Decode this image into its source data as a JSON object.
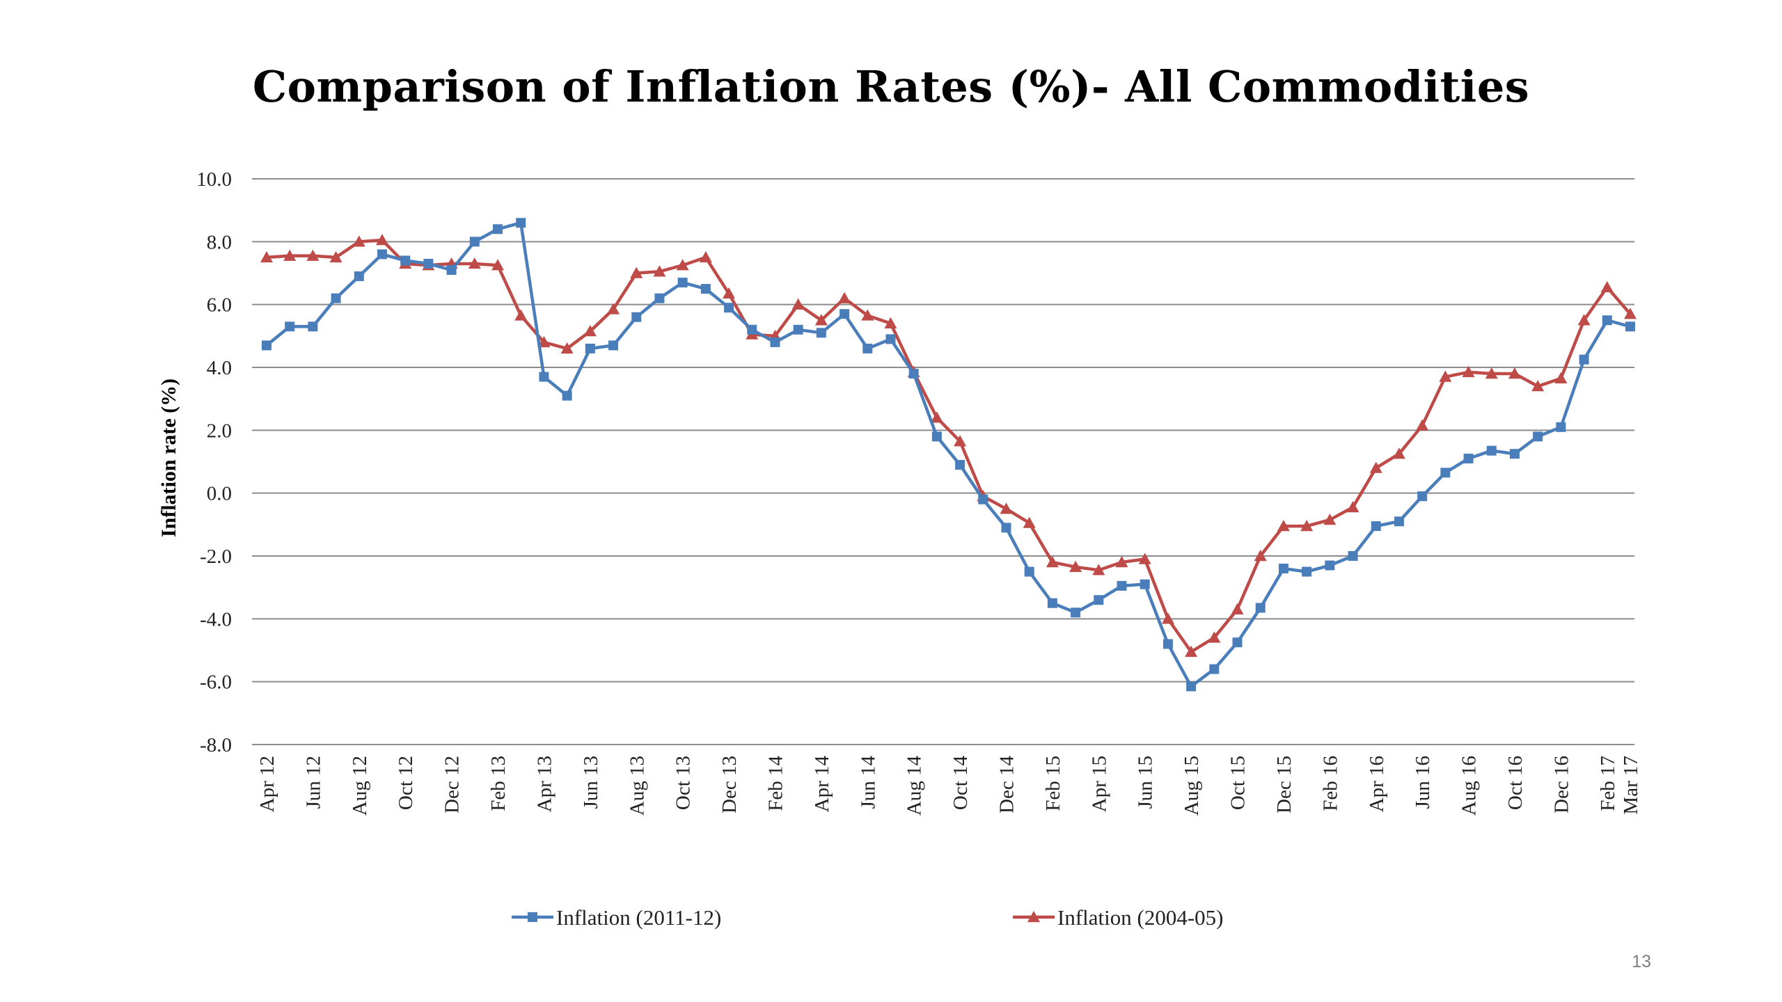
{
  "page_number": "13",
  "chart_data": {
    "type": "line",
    "title": "Comparison of  Inflation Rates (%)- All Commodities",
    "xlabel": "",
    "ylabel": "Inflation rate (%)",
    "ylim": [
      -8.0,
      10.0
    ],
    "ytick_values": [
      10.0,
      8.0,
      6.0,
      4.0,
      2.0,
      0.0,
      -2.0,
      -4.0,
      -6.0,
      -8.0
    ],
    "ytick_labels": [
      "10.0",
      "8.0",
      "6.0",
      "4.0",
      "2.0",
      "0.0",
      "-2.0",
      "-4.0",
      "-6.0",
      "-8.0"
    ],
    "grid": true,
    "legend_position": "bottom",
    "x": [
      "Apr 12",
      "May 12",
      "Jun 12",
      "Jul 12",
      "Aug 12",
      "Sep 12",
      "Oct 12",
      "Nov 12",
      "Dec 12",
      "Jan 13",
      "Feb 13",
      "Mar 13",
      "Apr 13",
      "May 13",
      "Jun 13",
      "Jul 13",
      "Aug 13",
      "Sep 13",
      "Oct 13",
      "Nov 13",
      "Dec 13",
      "Jan 14",
      "Feb 14",
      "Mar 14",
      "Apr 14",
      "May 14",
      "Jun 14",
      "Jul 14",
      "Aug 14",
      "Sep 14",
      "Oct 14",
      "Nov 14",
      "Dec 14",
      "Jan 15",
      "Feb 15",
      "Mar 15",
      "Apr 15",
      "May 15",
      "Jun 15",
      "Jul 15",
      "Aug 15",
      "Sep 15",
      "Oct 15",
      "Nov 15",
      "Dec 15",
      "Jan 16",
      "Feb 16",
      "Mar 16",
      "Apr 16",
      "May 16",
      "Jun 16",
      "Jul 16",
      "Aug 16",
      "Sep 16",
      "Oct 16",
      "Nov 16",
      "Dec 16",
      "Jan 17",
      "Feb 17",
      "Mar 17"
    ],
    "xtick_labels": [
      "Apr 12",
      "",
      "Jun 12",
      "",
      "Aug 12",
      "",
      "Oct 12",
      "",
      "Dec 12",
      "",
      "Feb 13",
      "",
      "Apr 13",
      "",
      "Jun 13",
      "",
      "Aug 13",
      "",
      "Oct 13",
      "",
      "Dec 13",
      "",
      "Feb 14",
      "",
      "Apr 14",
      "",
      "Jun 14",
      "",
      "Aug 14",
      "",
      "Oct 14",
      "",
      "Dec 14",
      "",
      "Feb 15",
      "",
      "Apr 15",
      "",
      "Jun 15",
      "",
      "Aug 15",
      "",
      "Oct 15",
      "",
      "Dec 15",
      "",
      "Feb 16",
      "",
      "Apr 16",
      "",
      "Jun 16",
      "",
      "Aug 16",
      "",
      "Oct 16",
      "",
      "Dec 16",
      "",
      "Feb 17",
      "Mar 17"
    ],
    "series": [
      {
        "name": "Inflation (2011-12)",
        "color": "#4a7ebb",
        "marker": "square",
        "values": [
          4.7,
          5.3,
          5.3,
          6.2,
          6.9,
          7.6,
          7.4,
          7.3,
          7.1,
          8.0,
          8.4,
          8.6,
          3.7,
          3.1,
          4.6,
          4.7,
          5.6,
          6.2,
          6.7,
          6.5,
          5.9,
          5.2,
          4.8,
          5.2,
          5.1,
          5.7,
          4.6,
          4.9,
          3.8,
          1.8,
          0.9,
          -0.2,
          -1.1,
          -2.5,
          -3.5,
          -3.8,
          -3.4,
          -2.95,
          -2.9,
          -4.8,
          -6.15,
          -5.6,
          -4.75,
          -3.65,
          -2.4,
          -2.5,
          -2.3,
          -2.0,
          -1.05,
          -0.9,
          -0.1,
          0.65,
          1.1,
          1.35,
          1.25,
          1.8,
          2.1,
          4.25,
          5.5,
          5.3
        ]
      },
      {
        "name": "Inflation (2004-05)",
        "color": "#be4b48",
        "marker": "triangle",
        "values": [
          7.5,
          7.55,
          7.55,
          7.5,
          8.0,
          8.05,
          7.3,
          7.25,
          7.3,
          7.3,
          7.25,
          5.65,
          4.8,
          4.6,
          5.15,
          5.85,
          7.0,
          7.05,
          7.25,
          7.5,
          6.35,
          5.05,
          5.0,
          6.0,
          5.5,
          6.2,
          5.65,
          5.4,
          3.85,
          2.4,
          1.65,
          -0.1,
          -0.5,
          -0.95,
          -2.2,
          -2.35,
          -2.45,
          -2.2,
          -2.1,
          -4.0,
          -5.05,
          -4.6,
          -3.7,
          -2.0,
          -1.05,
          -1.05,
          -0.85,
          -0.45,
          0.8,
          1.25,
          2.15,
          3.7,
          3.85,
          3.8,
          3.8,
          3.4,
          3.65,
          5.5,
          6.55,
          5.7
        ]
      }
    ]
  }
}
